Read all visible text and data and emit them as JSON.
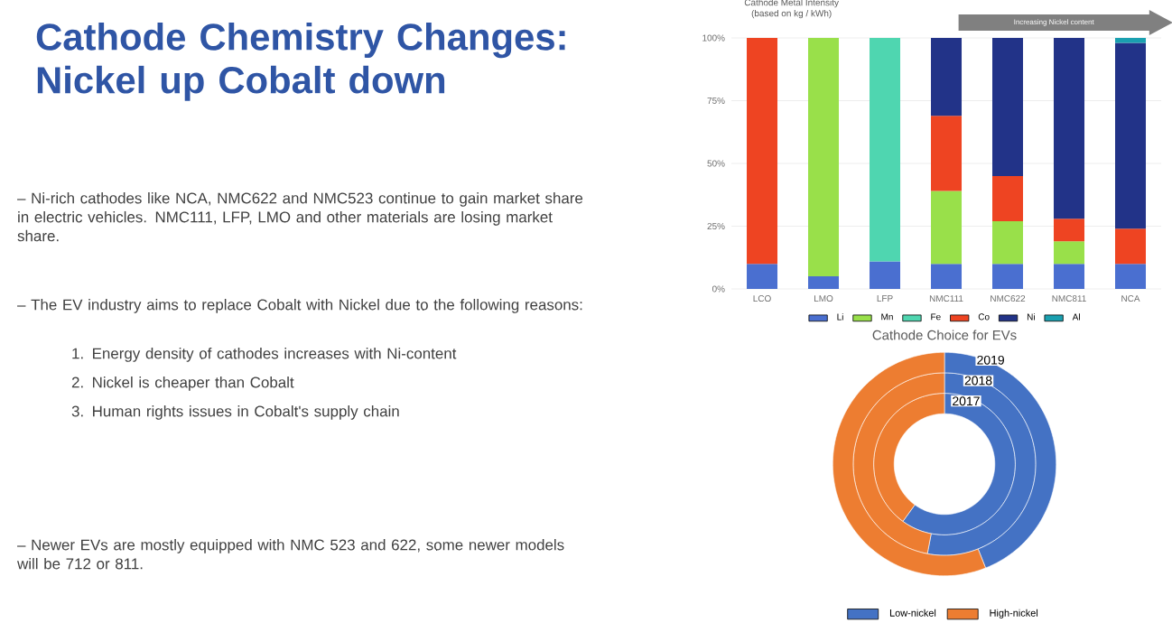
{
  "chart_data": [
    {
      "type": "other",
      "title": "Cathode Chemistry Changes: Nickel up Cobalt down",
      "annotations": [
        "– Ni-rich cathodes like NCA, NMC622 and NMC523 continue to gain market share in electric vehicles. NMC111, LFP, LMO and other materials are losing market share.",
        "– The EV industry aims to replace Cobalt with Nickel due to the following reasons:",
        "1. Energy density of cathodes increases with Ni-content",
        "2. Nickel is cheaper than Cobalt",
        "3. Human rights issues in Cobalt's supply chain",
        "– Newer EVs are mostly equipped with NMC 523 and 622, some newer models will be 712 or 811."
      ]
    },
    {
      "type": "bar",
      "stacked": true,
      "title": "Cathode Metal Intensity",
      "subtitle": "(based on kg / kWh)",
      "annotations": [
        "Increasing Nickel content"
      ],
      "categories": [
        "LCO",
        "LMO",
        "LFP",
        "NMC111",
        "NMC622",
        "NMC811",
        "NCA"
      ],
      "series": [
        {
          "name": "Li",
          "color": "#4a6fd0",
          "values": [
            10,
            5,
            11,
            10,
            10,
            10,
            10
          ]
        },
        {
          "name": "Mn",
          "color": "#99e04a",
          "values": [
            null,
            95,
            null,
            29,
            17,
            9,
            null
          ]
        },
        {
          "name": "Fe",
          "color": "#4fd6b0",
          "values": [
            null,
            null,
            89,
            null,
            null,
            null,
            null
          ]
        },
        {
          "name": "Co",
          "color": "#ee4422",
          "values": [
            90,
            null,
            null,
            30,
            18,
            9,
            14
          ]
        },
        {
          "name": "Ni",
          "color": "#223388",
          "values": [
            null,
            null,
            null,
            31,
            55,
            72,
            74
          ]
        },
        {
          "name": "Al",
          "color": "#1aa0b0",
          "values": [
            null,
            null,
            null,
            null,
            null,
            null,
            2
          ]
        }
      ],
      "ylim": [
        0,
        100
      ],
      "yticks": [
        {
          "value": 0,
          "label": "0%"
        },
        {
          "value": 25,
          "label": "25%"
        },
        {
          "value": 50,
          "label": "50%"
        },
        {
          "value": 75,
          "label": "75%"
        },
        {
          "value": 100,
          "label": "100%"
        }
      ],
      "grid": "y",
      "legend": "bottom"
    },
    {
      "type": "donut",
      "title": "Cathode Choice for EVs",
      "categories": [
        "Low-nickel",
        "High-nickel"
      ],
      "colors": [
        "#4472c4",
        "#ed7d31"
      ],
      "series": [
        {
          "name": "2017",
          "values": [
            60,
            40
          ]
        },
        {
          "name": "2018",
          "values": [
            53,
            47
          ]
        },
        {
          "name": "2019",
          "values": [
            44,
            56
          ]
        }
      ],
      "legend": "bottom"
    }
  ]
}
